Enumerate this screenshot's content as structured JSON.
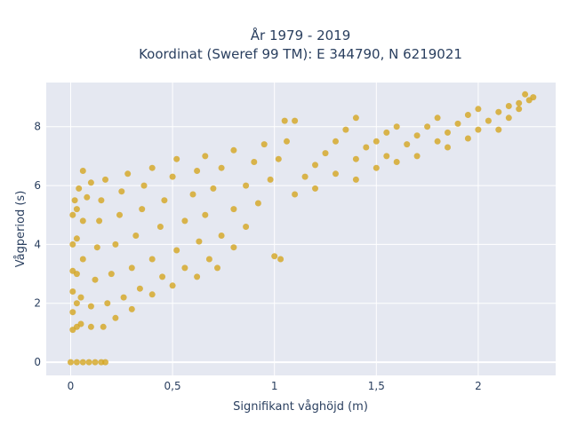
{
  "chart_data": {
    "type": "scatter",
    "title_line1": "År 1979 - 2019",
    "title_line2": "Koordinat (Sweref 99 TM): E 344790, N 6219021",
    "xlabel": "Signifikant våghöjd (m)",
    "ylabel": "Vågperiod (s)",
    "xlim": [
      -0.12,
      2.38
    ],
    "ylim": [
      -0.45,
      9.5
    ],
    "x_ticks": [
      0,
      0.5,
      1,
      1.5,
      2
    ],
    "x_tick_labels": [
      "0",
      "0,5",
      "1",
      "1,5",
      "2"
    ],
    "y_ticks": [
      0,
      2,
      4,
      6,
      8
    ],
    "y_tick_labels": [
      "0",
      "2",
      "4",
      "6",
      "8"
    ],
    "grid": true,
    "marker_color": "#d4a520",
    "plot_bg": "#e5e8f1",
    "points": [
      [
        0.0,
        0.0
      ],
      [
        0.03,
        0.0
      ],
      [
        0.06,
        0.0
      ],
      [
        0.09,
        0.0
      ],
      [
        0.12,
        0.0
      ],
      [
        0.15,
        0.0
      ],
      [
        0.17,
        0.0
      ],
      [
        0.01,
        1.1
      ],
      [
        0.01,
        1.7
      ],
      [
        0.01,
        2.4
      ],
      [
        0.01,
        3.1
      ],
      [
        0.01,
        4.0
      ],
      [
        0.01,
        5.0
      ],
      [
        0.02,
        5.5
      ],
      [
        0.03,
        1.2
      ],
      [
        0.03,
        2.0
      ],
      [
        0.03,
        3.0
      ],
      [
        0.03,
        4.2
      ],
      [
        0.03,
        5.2
      ],
      [
        0.04,
        5.9
      ],
      [
        0.06,
        6.5
      ],
      [
        0.05,
        1.3
      ],
      [
        0.05,
        2.2
      ],
      [
        0.06,
        3.5
      ],
      [
        0.06,
        4.8
      ],
      [
        0.08,
        5.6
      ],
      [
        0.1,
        6.1
      ],
      [
        0.1,
        1.2
      ],
      [
        0.1,
        1.9
      ],
      [
        0.12,
        2.8
      ],
      [
        0.13,
        3.9
      ],
      [
        0.14,
        4.8
      ],
      [
        0.15,
        5.5
      ],
      [
        0.17,
        6.2
      ],
      [
        0.16,
        1.2
      ],
      [
        0.18,
        2.0
      ],
      [
        0.2,
        3.0
      ],
      [
        0.22,
        4.0
      ],
      [
        0.24,
        5.0
      ],
      [
        0.25,
        5.8
      ],
      [
        0.28,
        6.4
      ],
      [
        0.22,
        1.5
      ],
      [
        0.26,
        2.2
      ],
      [
        0.3,
        3.2
      ],
      [
        0.32,
        4.3
      ],
      [
        0.35,
        5.2
      ],
      [
        0.36,
        6.0
      ],
      [
        0.4,
        6.6
      ],
      [
        0.3,
        1.8
      ],
      [
        0.34,
        2.5
      ],
      [
        0.4,
        3.5
      ],
      [
        0.44,
        4.6
      ],
      [
        0.46,
        5.5
      ],
      [
        0.5,
        6.3
      ],
      [
        0.52,
        6.9
      ],
      [
        0.4,
        2.3
      ],
      [
        0.45,
        2.9
      ],
      [
        0.52,
        3.8
      ],
      [
        0.56,
        4.8
      ],
      [
        0.6,
        5.7
      ],
      [
        0.62,
        6.5
      ],
      [
        0.66,
        7.0
      ],
      [
        0.5,
        2.6
      ],
      [
        0.56,
        3.2
      ],
      [
        0.63,
        4.1
      ],
      [
        0.66,
        5.0
      ],
      [
        0.7,
        5.9
      ],
      [
        0.74,
        6.6
      ],
      [
        0.8,
        7.2
      ],
      [
        0.62,
        2.9
      ],
      [
        0.68,
        3.5
      ],
      [
        0.74,
        4.3
      ],
      [
        0.8,
        5.2
      ],
      [
        0.86,
        6.0
      ],
      [
        0.9,
        6.8
      ],
      [
        0.95,
        7.4
      ],
      [
        0.72,
        3.2
      ],
      [
        0.8,
        3.9
      ],
      [
        0.86,
        4.6
      ],
      [
        0.92,
        5.4
      ],
      [
        0.98,
        6.2
      ],
      [
        1.02,
        6.9
      ],
      [
        1.06,
        7.5
      ],
      [
        1.0,
        3.6
      ],
      [
        1.03,
        3.5
      ],
      [
        1.05,
        8.2
      ],
      [
        1.1,
        8.2
      ],
      [
        1.1,
        5.7
      ],
      [
        1.15,
        6.3
      ],
      [
        1.2,
        6.7
      ],
      [
        1.25,
        7.1
      ],
      [
        1.3,
        7.5
      ],
      [
        1.35,
        7.9
      ],
      [
        1.4,
        8.3
      ],
      [
        1.2,
        5.9
      ],
      [
        1.3,
        6.4
      ],
      [
        1.4,
        6.9
      ],
      [
        1.45,
        7.3
      ],
      [
        1.5,
        7.5
      ],
      [
        1.55,
        7.8
      ],
      [
        1.6,
        8.0
      ],
      [
        1.4,
        6.2
      ],
      [
        1.5,
        6.6
      ],
      [
        1.55,
        7.0
      ],
      [
        1.65,
        7.4
      ],
      [
        1.7,
        7.7
      ],
      [
        1.75,
        8.0
      ],
      [
        1.8,
        8.3
      ],
      [
        1.6,
        6.8
      ],
      [
        1.7,
        7.0
      ],
      [
        1.8,
        7.5
      ],
      [
        1.85,
        7.8
      ],
      [
        1.9,
        8.1
      ],
      [
        1.95,
        8.4
      ],
      [
        2.0,
        8.6
      ],
      [
        1.85,
        7.3
      ],
      [
        1.95,
        7.6
      ],
      [
        2.0,
        7.9
      ],
      [
        2.05,
        8.2
      ],
      [
        2.1,
        8.5
      ],
      [
        2.15,
        8.7
      ],
      [
        2.2,
        8.8
      ],
      [
        2.1,
        7.9
      ],
      [
        2.15,
        8.3
      ],
      [
        2.2,
        8.6
      ],
      [
        2.23,
        9.1
      ],
      [
        2.25,
        8.9
      ],
      [
        2.27,
        9.0
      ]
    ]
  }
}
